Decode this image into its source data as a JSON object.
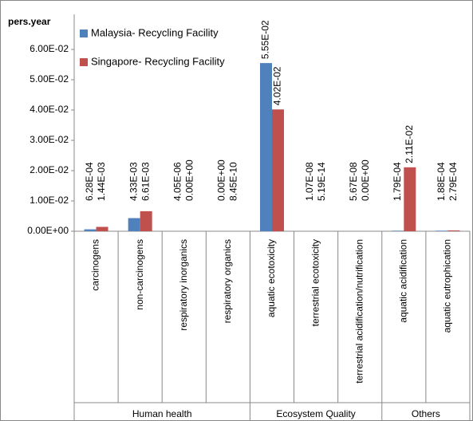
{
  "chart_data": {
    "type": "bar",
    "ylabel": "pers.year",
    "categories": [
      "carcinogens",
      "non-carcinogens",
      "respiratory inorganics",
      "respiratory organics",
      "aquatic ecotoxicity",
      "terrestrial ecotoxicity",
      "terrestrial acidification/nutrification",
      "aquatic acidification",
      "aquatic eutrophication"
    ],
    "groups": [
      {
        "name": "Human health",
        "start": 0,
        "end": 3
      },
      {
        "name": "Ecosystem Quality",
        "start": 4,
        "end": 6
      },
      {
        "name": "Others",
        "start": 7,
        "end": 8
      }
    ],
    "series": [
      {
        "name": "Malaysia- Recycling Facility",
        "color": "#4f81bd",
        "values": [
          0.000628,
          0.00433,
          4.05e-06,
          0,
          0.0555,
          1.07e-08,
          5.67e-08,
          0.000179,
          0.000188
        ],
        "value_labels": [
          "6.28E-04",
          "4.33E-03",
          "4.05E-06",
          "0.00E+00",
          "5.55E-02",
          "1.07E-08",
          "5.67E-08",
          "1.79E-04",
          "1.88E-04"
        ]
      },
      {
        "name": "Singapore- Recycling Facility",
        "color": "#c0504d",
        "values": [
          0.00144,
          0.00661,
          0,
          8.45e-10,
          0.0402,
          5.19e-14,
          0,
          0.0211,
          0.000279
        ],
        "value_labels": [
          "1.44E-03",
          "6.61E-03",
          "0.00E+00",
          "8.45E-10",
          "4.02E-02",
          "5.19E-14",
          "0.00E+00",
          "2.11E-02",
          "2.79E-04"
        ]
      }
    ],
    "ylim": [
      0,
      0.06
    ],
    "yticks": [
      {
        "value": 0,
        "label": "0.00E+00"
      },
      {
        "value": 0.01,
        "label": "1.00E-02"
      },
      {
        "value": 0.02,
        "label": "2.00E-02"
      },
      {
        "value": 0.03,
        "label": "3.00E-02"
      },
      {
        "value": 0.04,
        "label": "4.00E-02"
      },
      {
        "value": 0.05,
        "label": "5.00E-02"
      },
      {
        "value": 0.06,
        "label": "6.00E-02"
      }
    ],
    "legend": "upper left"
  }
}
